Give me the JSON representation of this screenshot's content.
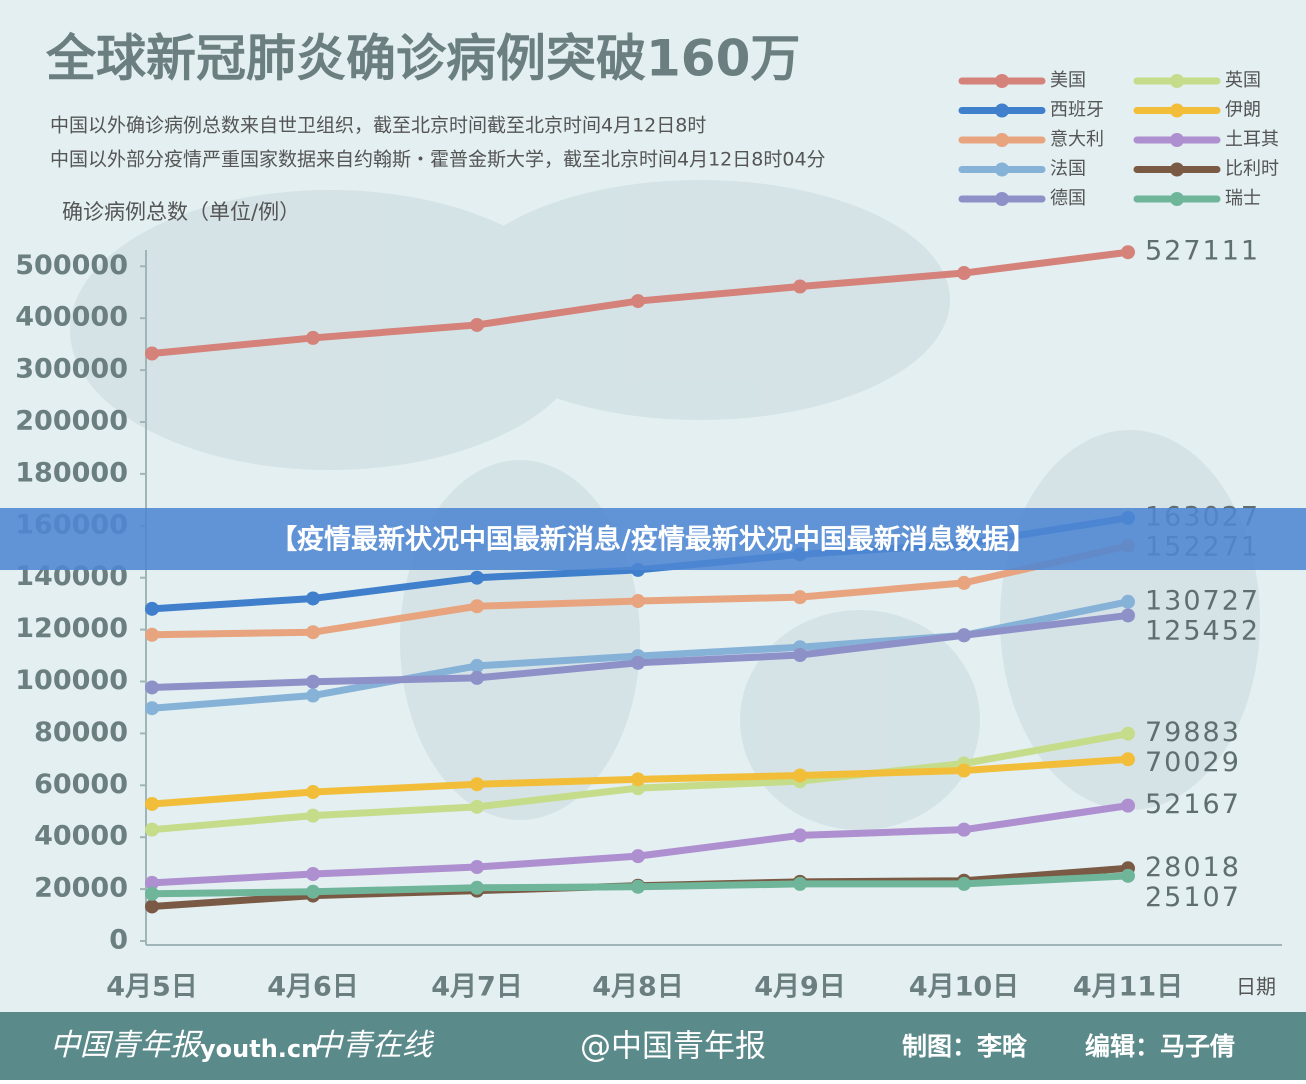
{
  "chart_data": {
    "type": "line",
    "title": "全球新冠肺炎确诊病例突破160万",
    "subtitles": [
      "中国以外确诊病例总数来自世卫组织，截至北京时间截至北京时间4月12日8时",
      "中国以外部分疫情严重国家数据来自约翰斯・霍普金斯大学，截至北京时间4月12日8时04分"
    ],
    "y_label": "确诊病例总数（单位/例）",
    "x_label": "日期",
    "categories": [
      "4月5日",
      "4月6日",
      "4月7日",
      "4月8日",
      "4月9日",
      "4月10日",
      "4月11日"
    ],
    "y_scale": "segmented",
    "ylim": [
      0,
      530000
    ],
    "yticks": [
      0,
      20000,
      40000,
      60000,
      80000,
      100000,
      120000,
      140000,
      160000,
      180000,
      200000,
      300000,
      400000,
      500000
    ],
    "series": [
      {
        "name": "美国",
        "color": "#d4827a",
        "values": [
          332000,
          362000,
          387000,
          433000,
          461000,
          487000,
          527111
        ]
      },
      {
        "name": "西班牙",
        "color": "#3f7fcc",
        "values": [
          128000,
          132000,
          140000,
          143000,
          149000,
          153000,
          163027
        ]
      },
      {
        "name": "意大利",
        "color": "#e8a47e",
        "values": [
          118000,
          119000,
          129000,
          131000,
          132500,
          138000,
          152271
        ]
      },
      {
        "name": "法国",
        "color": "#86b2d8",
        "values": [
          89700,
          94600,
          106000,
          109800,
          113200,
          117800,
          130727
        ]
      },
      {
        "name": "德国",
        "color": "#8e90c8",
        "values": [
          97700,
          99900,
          101400,
          107200,
          110200,
          117800,
          125452
        ]
      },
      {
        "name": "英国",
        "color": "#c5dc8a",
        "values": [
          42900,
          48300,
          51700,
          58900,
          61600,
          68400,
          79883
        ]
      },
      {
        "name": "伊朗",
        "color": "#f2be3a",
        "values": [
          52800,
          57400,
          60400,
          62300,
          63800,
          65700,
          70029
        ]
      },
      {
        "name": "土耳其",
        "color": "#ae8fcf",
        "values": [
          22400,
          25800,
          28500,
          32700,
          40700,
          42900,
          52167
        ]
      },
      {
        "name": "比利时",
        "color": "#7a5a44",
        "values": [
          13300,
          17500,
          19400,
          21300,
          22800,
          23200,
          28018
        ]
      },
      {
        "name": "瑞士",
        "color": "#6fb59a",
        "values": [
          18200,
          19000,
          20500,
          20900,
          22000,
          22000,
          25107
        ]
      }
    ]
  },
  "banner": "【疫情最新状况中国最新消息/疫情最新状况中国最新消息数据】",
  "footer": {
    "logos": [
      "中国青年报",
      "youth.cn",
      "中青在线"
    ],
    "weibo": "@中国青年报",
    "credits": [
      "制图：李晗",
      "编辑：马子倩"
    ]
  }
}
